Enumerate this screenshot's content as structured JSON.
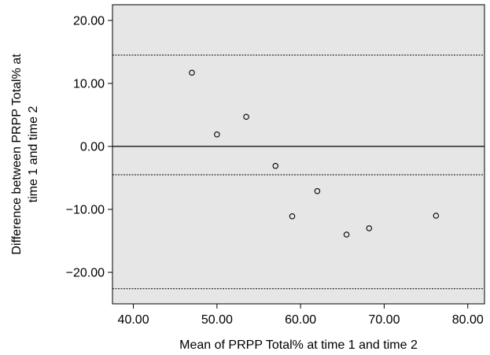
{
  "chart_data": {
    "type": "scatter",
    "xlabel": "Mean of PRPP Total% at time 1 and time 2",
    "ylabel_lines": [
      "Difference between PRPP Total% at",
      "time 1 and time 2"
    ],
    "xlim": [
      37.5,
      82.0
    ],
    "ylim": [
      -25.0,
      22.5
    ],
    "x_ticks": [
      40,
      50,
      60,
      70,
      80
    ],
    "x_tick_labels": [
      "40.00",
      "50.00",
      "60.00",
      "70.00",
      "80.00"
    ],
    "y_ticks": [
      20,
      10,
      0,
      -10,
      -20
    ],
    "y_tick_labels": [
      "20.00",
      "10.00",
      "0.00",
      "−10.00",
      "−20.00"
    ],
    "grid": false,
    "plot_background": "#e6e6e6",
    "zero_line": 0,
    "reference_lines": [
      14.5,
      -4.5,
      -22.6
    ],
    "points": [
      {
        "x": 47.0,
        "y": 11.7
      },
      {
        "x": 50.0,
        "y": 1.9
      },
      {
        "x": 53.5,
        "y": 4.7
      },
      {
        "x": 57.0,
        "y": -3.1
      },
      {
        "x": 59.0,
        "y": -11.1
      },
      {
        "x": 62.0,
        "y": -7.1
      },
      {
        "x": 65.5,
        "y": -14.0
      },
      {
        "x": 68.2,
        "y": -13.0
      },
      {
        "x": 76.2,
        "y": -11.0
      }
    ]
  }
}
